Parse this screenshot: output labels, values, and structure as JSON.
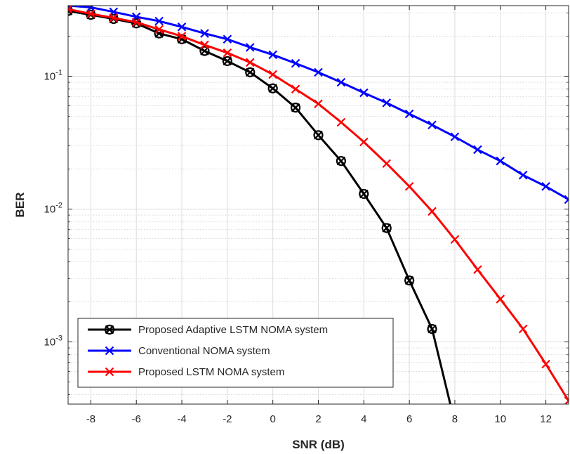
{
  "chart_data": {
    "type": "line",
    "xlabel": "SNR (dB)",
    "ylabel": "BER",
    "xlim": [
      -9,
      13
    ],
    "ylim": [
      0.00034,
      0.34
    ],
    "yscale": "log",
    "grid": true,
    "minor_grid": true,
    "legend_position": "bottom-left",
    "x_ticks": [
      -8,
      -6,
      -4,
      -2,
      0,
      2,
      4,
      6,
      8,
      10,
      12
    ],
    "x_tick_labels": [
      "-8",
      "-6",
      "-4",
      "-2",
      "0",
      "2",
      "4",
      "6",
      "8",
      "10",
      "12"
    ],
    "y_ticks": [
      {
        "value": 0.1,
        "base": "10",
        "exp": "-1"
      },
      {
        "value": 0.01,
        "base": "10",
        "exp": "-2"
      },
      {
        "value": 0.001,
        "base": "10",
        "exp": "-3"
      }
    ],
    "series": [
      {
        "name": "Proposed Adaptive LSTM NOMA system",
        "color": "#000000",
        "marker": "circle-x",
        "x": [
          -9,
          -8,
          -7,
          -6,
          -5,
          -4,
          -3,
          -2,
          -1,
          0,
          1,
          2,
          3,
          4,
          5,
          6,
          7,
          7.8
        ],
        "y": [
          0.31,
          0.29,
          0.27,
          0.25,
          0.21,
          0.19,
          0.155,
          0.13,
          0.107,
          0.081,
          0.058,
          0.036,
          0.023,
          0.013,
          0.0072,
          0.0029,
          0.00125,
          0.00034
        ]
      },
      {
        "name": "Conventional NOMA system",
        "color": "#0000ff",
        "marker": "x",
        "x": [
          -9,
          -8,
          -7,
          -6,
          -5,
          -4,
          -3,
          -2,
          -1,
          0,
          1,
          2,
          3,
          4,
          5,
          6,
          7,
          8,
          9,
          10,
          11,
          12,
          13
        ],
        "y": [
          0.34,
          0.33,
          0.305,
          0.28,
          0.26,
          0.235,
          0.21,
          0.19,
          0.165,
          0.145,
          0.125,
          0.107,
          0.09,
          0.075,
          0.063,
          0.052,
          0.043,
          0.035,
          0.028,
          0.023,
          0.018,
          0.0148,
          0.0118
        ]
      },
      {
        "name": "Proposed LSTM NOMA system",
        "color": "#ff0000",
        "marker": "x",
        "x": [
          -9,
          -8,
          -7,
          -6,
          -5,
          -4,
          -3,
          -2,
          -1,
          0,
          1,
          2,
          3,
          4,
          5,
          6,
          7,
          8,
          9,
          10,
          11,
          12,
          13
        ],
        "y": [
          0.32,
          0.295,
          0.275,
          0.255,
          0.225,
          0.2,
          0.172,
          0.15,
          0.127,
          0.103,
          0.08,
          0.062,
          0.045,
          0.032,
          0.022,
          0.0148,
          0.0096,
          0.0059,
          0.0035,
          0.0021,
          0.00125,
          0.00068,
          0.00036
        ]
      }
    ]
  }
}
